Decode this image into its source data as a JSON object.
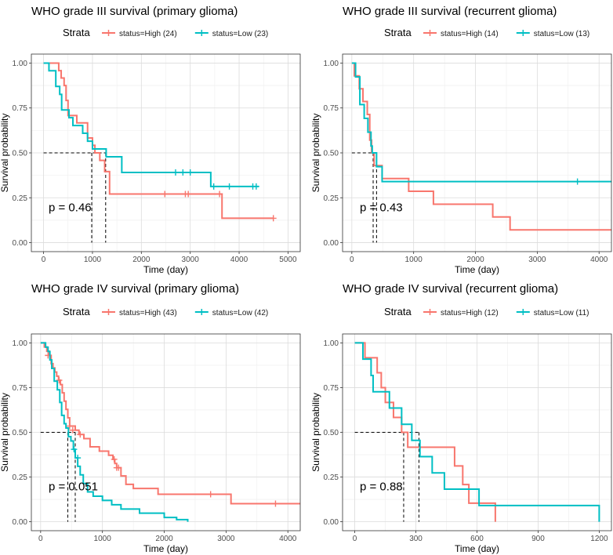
{
  "figure": {
    "colors": {
      "high": "#F8766D",
      "low": "#00BFC4",
      "grid_major": "#dcdcdc",
      "grid_minor": "#eeeeee",
      "panel_border": "#333333"
    },
    "legend_title": "Strata"
  },
  "chart_data": [
    {
      "type": "line",
      "title": "WHO grade III survival (primary glioma)",
      "xlabel": "Time (day)",
      "ylabel": "Survival probability",
      "xlim": [
        -250,
        5250
      ],
      "ylim": [
        -0.05,
        1.05
      ],
      "xticks": [
        0,
        1000,
        2000,
        3000,
        4000,
        5000
      ],
      "yticks": [
        0.0,
        0.25,
        0.5,
        0.75,
        1.0
      ],
      "ytick_labels": [
        "0.00",
        "0.25",
        "0.50",
        "0.75",
        "1.00"
      ],
      "pvalue": "p = 0.46",
      "median_lines": [
        985,
        1270
      ],
      "series": [
        {
          "name": "status=High (24)",
          "color_key": "high",
          "steps": [
            [
              0,
              1.0
            ],
            [
              310,
              0.958
            ],
            [
              360,
              0.917
            ],
            [
              420,
              0.875
            ],
            [
              460,
              0.792
            ],
            [
              500,
              0.708
            ],
            [
              680,
              0.667
            ],
            [
              900,
              0.583
            ],
            [
              1000,
              0.542
            ],
            [
              1050,
              0.5
            ],
            [
              1150,
              0.458
            ],
            [
              1250,
              0.396
            ],
            [
              1350,
              0.271
            ],
            [
              3650,
              0.136
            ],
            [
              4700,
              0.136
            ]
          ],
          "censors": [
            [
              2480,
              0.271
            ],
            [
              2900,
              0.271
            ],
            [
              2960,
              0.271
            ],
            [
              3600,
              0.271
            ],
            [
              4700,
              0.136
            ]
          ]
        },
        {
          "name": "status=Low (23)",
          "color_key": "low",
          "steps": [
            [
              0,
              1.0
            ],
            [
              110,
              0.957
            ],
            [
              250,
              0.87
            ],
            [
              330,
              0.826
            ],
            [
              370,
              0.739
            ],
            [
              520,
              0.696
            ],
            [
              600,
              0.652
            ],
            [
              800,
              0.609
            ],
            [
              900,
              0.565
            ],
            [
              1000,
              0.522
            ],
            [
              1280,
              0.478
            ],
            [
              1600,
              0.391
            ],
            [
              3420,
              0.313
            ],
            [
              4400,
              0.313
            ]
          ],
          "censors": [
            [
              2700,
              0.391
            ],
            [
              2850,
              0.391
            ],
            [
              3000,
              0.391
            ],
            [
              3480,
              0.313
            ],
            [
              3800,
              0.313
            ],
            [
              4280,
              0.313
            ],
            [
              4350,
              0.313
            ]
          ]
        }
      ]
    },
    {
      "type": "line",
      "title": "WHO grade III survival (recurrent glioma)",
      "xlabel": "Time (day)",
      "ylabel": "Survival probability",
      "xlim": [
        -150,
        4200
      ],
      "ylim": [
        -0.05,
        1.05
      ],
      "xticks": [
        0,
        1000,
        2000,
        3000,
        4000
      ],
      "yticks": [
        0.0,
        0.25,
        0.5,
        0.75,
        1.0
      ],
      "ytick_labels": [
        "0.00",
        "0.25",
        "0.50",
        "0.75",
        "1.00"
      ],
      "pvalue": "p = 0.43",
      "median_lines": [
        345,
        400
      ],
      "series": [
        {
          "name": "status=High (14)",
          "color_key": "high",
          "steps": [
            [
              0,
              1.0
            ],
            [
              40,
              0.929
            ],
            [
              120,
              0.857
            ],
            [
              180,
              0.786
            ],
            [
              250,
              0.714
            ],
            [
              290,
              0.571
            ],
            [
              320,
              0.5
            ],
            [
              360,
              0.429
            ],
            [
              490,
              0.357
            ],
            [
              920,
              0.286
            ],
            [
              1320,
              0.214
            ],
            [
              2280,
              0.143
            ],
            [
              2560,
              0.071
            ],
            [
              4200,
              0.071
            ]
          ],
          "censors": []
        },
        {
          "name": "status=Low (13)",
          "color_key": "low",
          "steps": [
            [
              0,
              1.0
            ],
            [
              60,
              0.923
            ],
            [
              130,
              0.769
            ],
            [
              200,
              0.692
            ],
            [
              260,
              0.615
            ],
            [
              310,
              0.538
            ],
            [
              330,
              0.5
            ],
            [
              400,
              0.423
            ],
            [
              490,
              0.34
            ],
            [
              4200,
              0.34
            ]
          ],
          "censors": [
            [
              3650,
              0.34
            ]
          ]
        }
      ]
    },
    {
      "type": "line",
      "title": "WHO grade IV survival (primary glioma)",
      "xlabel": "Time (day)",
      "ylabel": "Survival probability",
      "xlim": [
        -150,
        4200
      ],
      "ylim": [
        -0.05,
        1.05
      ],
      "xticks": [
        0,
        1000,
        2000,
        3000,
        4000
      ],
      "yticks": [
        0.0,
        0.25,
        0.5,
        0.75,
        1.0
      ],
      "ytick_labels": [
        "0.00",
        "0.25",
        "0.50",
        "0.75",
        "1.00"
      ],
      "pvalue": "p = 0.051",
      "median_lines": [
        440,
        560
      ],
      "series": [
        {
          "name": "status=High (43)",
          "color_key": "high",
          "steps": [
            [
              0,
              1.0
            ],
            [
              60,
              0.977
            ],
            [
              100,
              0.953
            ],
            [
              140,
              0.93
            ],
            [
              170,
              0.884
            ],
            [
              200,
              0.86
            ],
            [
              230,
              0.837
            ],
            [
              260,
              0.814
            ],
            [
              290,
              0.791
            ],
            [
              320,
              0.767
            ],
            [
              350,
              0.721
            ],
            [
              380,
              0.674
            ],
            [
              410,
              0.628
            ],
            [
              440,
              0.581
            ],
            [
              470,
              0.535
            ],
            [
              560,
              0.512
            ],
            [
              620,
              0.488
            ],
            [
              700,
              0.465
            ],
            [
              800,
              0.419
            ],
            [
              950,
              0.395
            ],
            [
              1100,
              0.372
            ],
            [
              1170,
              0.349
            ],
            [
              1200,
              0.326
            ],
            [
              1230,
              0.302
            ],
            [
              1300,
              0.256
            ],
            [
              1380,
              0.209
            ],
            [
              1500,
              0.186
            ],
            [
              1900,
              0.154
            ],
            [
              3080,
              0.101
            ],
            [
              4200,
              0.101
            ]
          ],
          "censors": [
            [
              120,
              0.93
            ],
            [
              300,
              0.791
            ],
            [
              470,
              0.535
            ],
            [
              520,
              0.512
            ],
            [
              640,
              0.488
            ],
            [
              1190,
              0.349
            ],
            [
              1230,
              0.302
            ],
            [
              1260,
              0.302
            ],
            [
              2750,
              0.154
            ],
            [
              3800,
              0.101
            ]
          ]
        },
        {
          "name": "status=Low (42)",
          "color_key": "low",
          "steps": [
            [
              0,
              1.0
            ],
            [
              80,
              0.976
            ],
            [
              120,
              0.952
            ],
            [
              150,
              0.905
            ],
            [
              180,
              0.857
            ],
            [
              220,
              0.786
            ],
            [
              270,
              0.738
            ],
            [
              310,
              0.667
            ],
            [
              340,
              0.595
            ],
            [
              380,
              0.548
            ],
            [
              410,
              0.524
            ],
            [
              450,
              0.476
            ],
            [
              490,
              0.452
            ],
            [
              530,
              0.405
            ],
            [
              560,
              0.357
            ],
            [
              600,
              0.31
            ],
            [
              640,
              0.262
            ],
            [
              690,
              0.214
            ],
            [
              760,
              0.167
            ],
            [
              850,
              0.143
            ],
            [
              1000,
              0.119
            ],
            [
              1150,
              0.095
            ],
            [
              1300,
              0.071
            ],
            [
              1600,
              0.048
            ],
            [
              2000,
              0.024
            ],
            [
              2200,
              0.012
            ],
            [
              2380,
              0.0
            ]
          ],
          "censors": [
            [
              540,
              0.405
            ],
            [
              600,
              0.357
            ]
          ]
        }
      ]
    },
    {
      "type": "line",
      "title": "WHO grade IV survival (recurrent glioma)",
      "xlabel": "Time (day)",
      "ylabel": "Survival probability",
      "xlim": [
        -60,
        1260
      ],
      "ylim": [
        -0.05,
        1.05
      ],
      "xticks": [
        0,
        300,
        600,
        900,
        1200
      ],
      "yticks": [
        0.0,
        0.25,
        0.5,
        0.75,
        1.0
      ],
      "ytick_labels": [
        "0.00",
        "0.25",
        "0.50",
        "0.75",
        "1.00"
      ],
      "pvalue": "p = 0.88",
      "median_lines": [
        240,
        315
      ],
      "series": [
        {
          "name": "status=High (12)",
          "color_key": "high",
          "steps": [
            [
              0,
              1.0
            ],
            [
              50,
              0.917
            ],
            [
              110,
              0.833
            ],
            [
              130,
              0.75
            ],
            [
              150,
              0.667
            ],
            [
              190,
              0.583
            ],
            [
              230,
              0.5
            ],
            [
              260,
              0.417
            ],
            [
              490,
              0.312
            ],
            [
              530,
              0.208
            ],
            [
              560,
              0.104
            ],
            [
              690,
              0.0
            ]
          ],
          "censors": [
            [
              320,
              0.417
            ]
          ]
        },
        {
          "name": "status=Low (11)",
          "color_key": "low",
          "steps": [
            [
              0,
              1.0
            ],
            [
              40,
              0.909
            ],
            [
              80,
              0.818
            ],
            [
              90,
              0.727
            ],
            [
              170,
              0.636
            ],
            [
              230,
              0.545
            ],
            [
              280,
              0.455
            ],
            [
              320,
              0.364
            ],
            [
              380,
              0.273
            ],
            [
              440,
              0.182
            ],
            [
              610,
              0.091
            ],
            [
              1200,
              0.0
            ]
          ],
          "censors": []
        }
      ]
    }
  ]
}
